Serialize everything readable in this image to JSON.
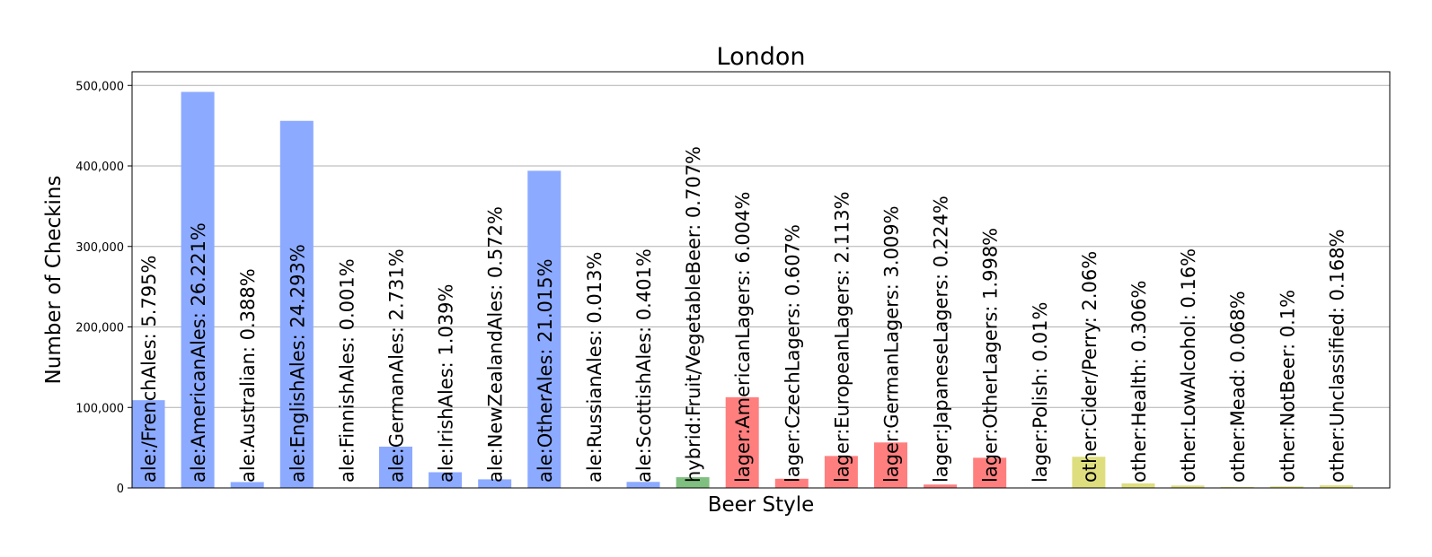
{
  "chart_data": {
    "type": "bar",
    "title": "London",
    "xlabel": "Beer Style",
    "ylabel": "Number of Checkins",
    "ylim": [
      0,
      517000
    ],
    "yticks": [
      0,
      100000,
      200000,
      300000,
      400000,
      500000
    ],
    "ytick_labels": [
      "0",
      "100,000",
      "200,000",
      "300,000",
      "400,000",
      "500,000"
    ],
    "grid": "horizontal",
    "category_colors": {
      "ale": "#8caaff",
      "hybrid": "#7fbf7f",
      "lager": "#ff7f7f",
      "other": "#dede7f"
    },
    "bars": [
      {
        "category": "ale",
        "label": "ale:/FrenchAles: 5.795%",
        "value": 109000
      },
      {
        "category": "ale",
        "label": "ale:AmericanAles: 26.221%",
        "value": 492000
      },
      {
        "category": "ale",
        "label": "ale:Australian: 0.388%",
        "value": 7300
      },
      {
        "category": "ale",
        "label": "ale:EnglishAles: 24.293%",
        "value": 456000
      },
      {
        "category": "ale",
        "label": "ale:FinnishAles: 0.001%",
        "value": 20
      },
      {
        "category": "ale",
        "label": "ale:GermanAles: 2.731%",
        "value": 51300
      },
      {
        "category": "ale",
        "label": "ale:IrishAles: 1.039%",
        "value": 19500
      },
      {
        "category": "ale",
        "label": "ale:NewZealandAles: 0.572%",
        "value": 10700
      },
      {
        "category": "ale",
        "label": "ale:OtherAles: 21.015%",
        "value": 394000
      },
      {
        "category": "ale",
        "label": "ale:RussianAles: 0.013%",
        "value": 240
      },
      {
        "category": "ale",
        "label": "ale:ScottishAles: 0.401%",
        "value": 7500
      },
      {
        "category": "hybrid",
        "label": "hybrid:Fruit/VegetableBeer: 0.707%",
        "value": 13300
      },
      {
        "category": "lager",
        "label": "lager:AmericanLagers: 6.004%",
        "value": 112700
      },
      {
        "category": "lager",
        "label": "lager:CzechLagers: 0.607%",
        "value": 11400
      },
      {
        "category": "lager",
        "label": "lager:EuropeanLagers: 2.113%",
        "value": 39700
      },
      {
        "category": "lager",
        "label": "lager:GermanLagers: 3.009%",
        "value": 56500
      },
      {
        "category": "lager",
        "label": "lager:JapaneseLagers: 0.224%",
        "value": 4200
      },
      {
        "category": "lager",
        "label": "lager:OtherLagers: 1.998%",
        "value": 37500
      },
      {
        "category": "lager",
        "label": "lager:Polish: 0.01%",
        "value": 190
      },
      {
        "category": "other",
        "label": "other:Cider/Perry: 2.06%",
        "value": 38700
      },
      {
        "category": "other",
        "label": "other:Health: 0.306%",
        "value": 5700
      },
      {
        "category": "other",
        "label": "other:LowAlcohol: 0.16%",
        "value": 3000
      },
      {
        "category": "other",
        "label": "other:Mead: 0.068%",
        "value": 1300
      },
      {
        "category": "other",
        "label": "other:NotBeer: 0.1%",
        "value": 1900
      },
      {
        "category": "other",
        "label": "other:Unclassified: 0.168%",
        "value": 3200
      }
    ]
  }
}
